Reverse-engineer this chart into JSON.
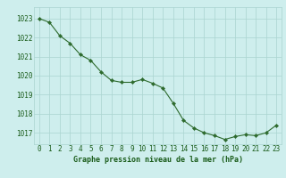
{
  "x": [
    0,
    1,
    2,
    3,
    4,
    5,
    6,
    7,
    8,
    9,
    10,
    11,
    12,
    13,
    14,
    15,
    16,
    17,
    18,
    19,
    20,
    21,
    22,
    23
  ],
  "y": [
    1023.0,
    1022.8,
    1022.1,
    1021.7,
    1021.1,
    1020.8,
    1020.2,
    1019.75,
    1019.65,
    1019.65,
    1019.8,
    1019.6,
    1019.35,
    1018.55,
    1017.65,
    1017.25,
    1017.0,
    1016.85,
    1016.65,
    1016.8,
    1016.9,
    1016.85,
    1017.0,
    1017.4
  ],
  "line_color": "#2d6a2d",
  "marker": "D",
  "marker_size": 2.2,
  "bg_color": "#ceeeed",
  "grid_color": "#aad4d0",
  "title": "Graphe pression niveau de la mer (hPa)",
  "ylim_min": 1016.4,
  "ylim_max": 1023.6,
  "xticks": [
    0,
    1,
    2,
    3,
    4,
    5,
    6,
    7,
    8,
    9,
    10,
    11,
    12,
    13,
    14,
    15,
    16,
    17,
    18,
    19,
    20,
    21,
    22,
    23
  ],
  "ytick_labels": [
    "1017",
    "1018",
    "1019",
    "1020",
    "1021",
    "1022",
    "1023"
  ],
  "ytick_values": [
    1017,
    1018,
    1019,
    1020,
    1021,
    1022,
    1023
  ],
  "title_fontsize": 6.0,
  "tick_fontsize": 5.5
}
